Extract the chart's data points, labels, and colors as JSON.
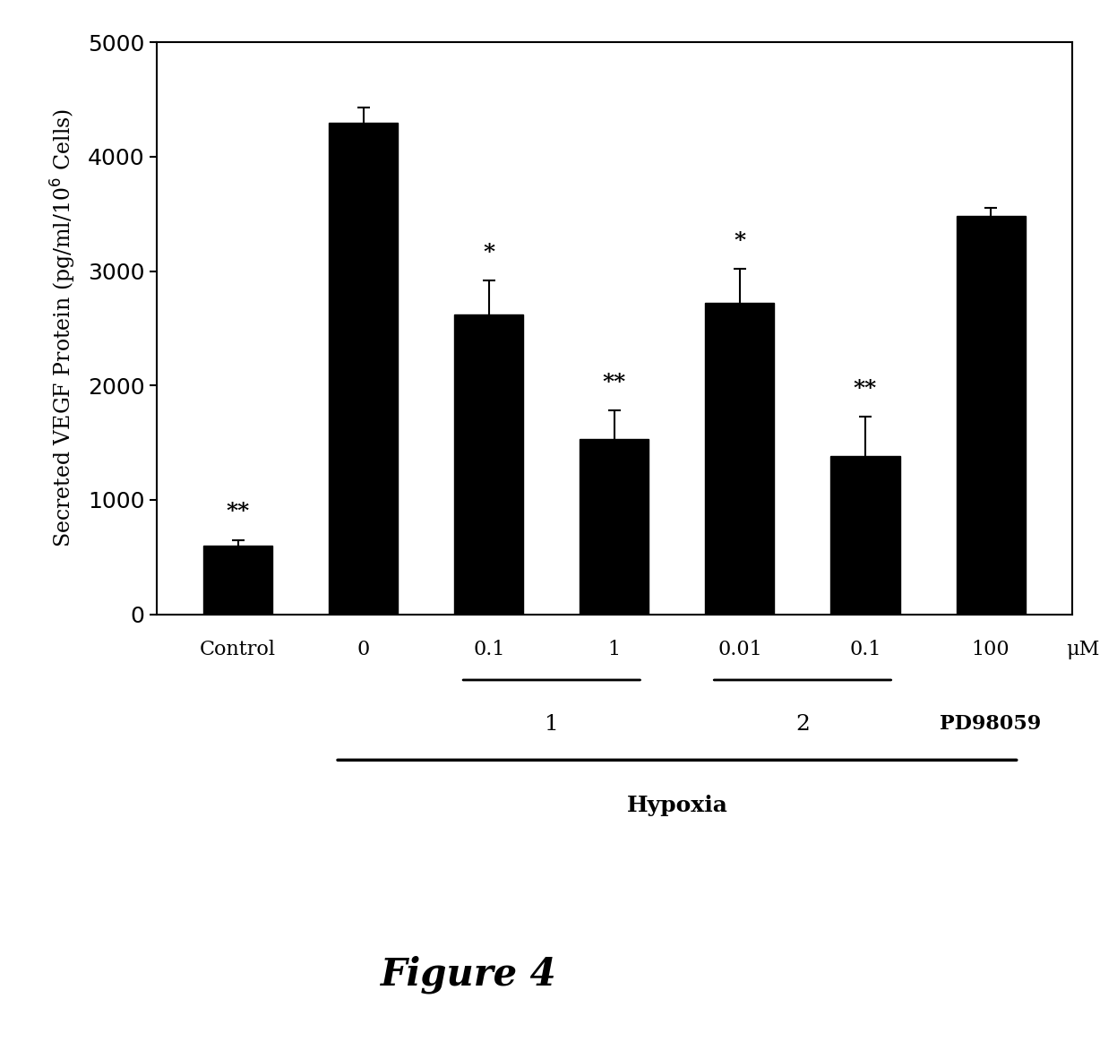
{
  "bar_values": [
    600,
    4300,
    2620,
    1530,
    2720,
    1380,
    3480
  ],
  "bar_errors": [
    50,
    130,
    300,
    250,
    300,
    350,
    70
  ],
  "bar_color": "#000000",
  "xlabel_labels": [
    "Control",
    "0",
    "0.1",
    "1",
    "0.01",
    "0.1",
    "100"
  ],
  "uM_label": "μM",
  "significance": [
    "**",
    null,
    "*",
    "**",
    "*",
    "**",
    null
  ],
  "group1_label": "1",
  "group2_label": "2",
  "group3_label": "PD98059",
  "hypoxia_label": "Hypoxia",
  "ylabel": "Secreted VEGF Protein (pg/ml/10$^6$ Cells)",
  "ylim": [
    0,
    5000
  ],
  "yticks": [
    0,
    1000,
    2000,
    3000,
    4000,
    5000
  ],
  "figure_label": "Figure 4",
  "bar_width": 0.55,
  "background_color": "#ffffff"
}
